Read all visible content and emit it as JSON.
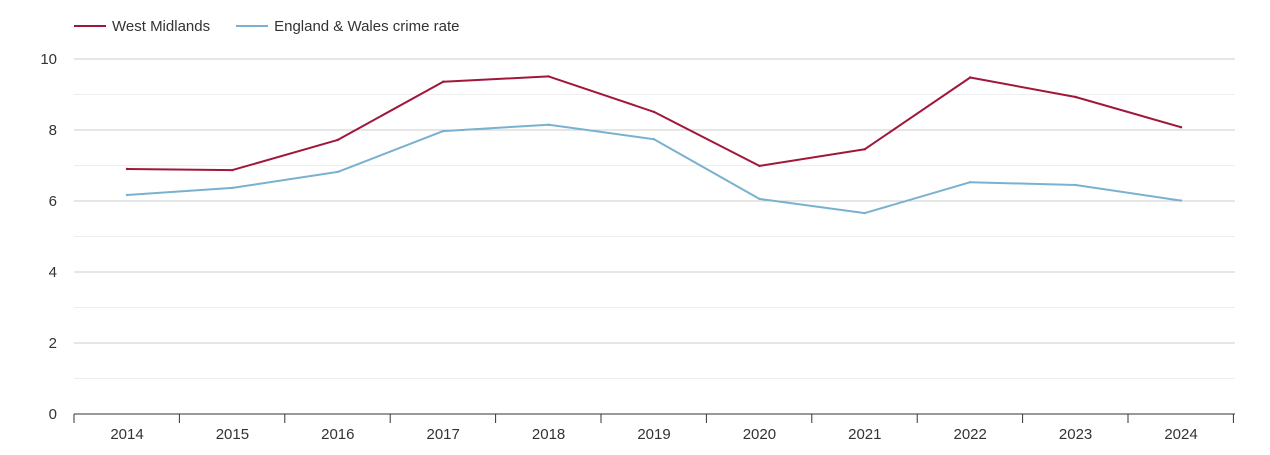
{
  "chart_data": {
    "type": "line",
    "categories": [
      "2014",
      "2015",
      "2016",
      "2017",
      "2018",
      "2019",
      "2020",
      "2021",
      "2022",
      "2023",
      "2024"
    ],
    "series": [
      {
        "name": "West Midlands",
        "color": "#a0173a",
        "values": [
          6.9,
          6.87,
          7.72,
          9.36,
          9.51,
          8.51,
          6.99,
          7.46,
          9.48,
          8.93,
          8.08
        ]
      },
      {
        "name": "England & Wales crime rate",
        "color": "#7ab0d0",
        "values": [
          6.17,
          6.37,
          6.82,
          7.97,
          8.15,
          7.74,
          6.06,
          5.66,
          6.53,
          6.45,
          6.01
        ]
      }
    ],
    "ylim": [
      0,
      10
    ],
    "yticks": [
      "0",
      "2",
      "4",
      "6",
      "8",
      "10"
    ],
    "title": "",
    "xlabel": "",
    "ylabel": "",
    "grid": true,
    "legend_position": "top-left"
  }
}
